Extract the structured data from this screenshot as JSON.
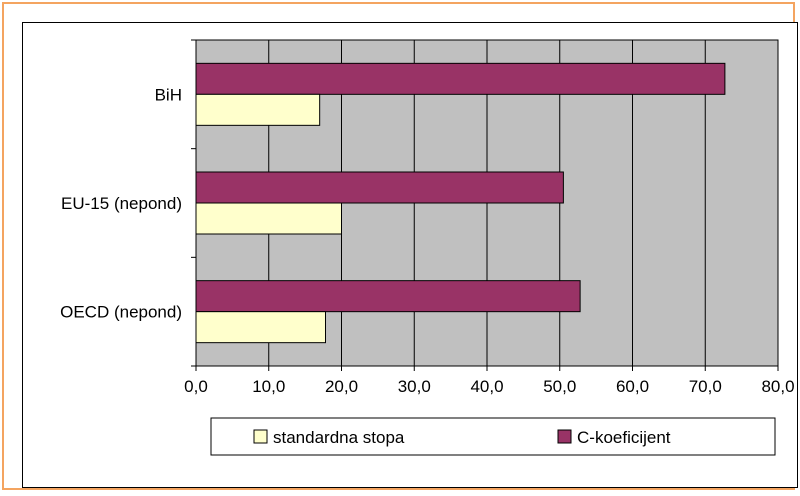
{
  "chart_data": {
    "type": "bar",
    "orientation": "horizontal",
    "categories": [
      "BiH",
      "EU-15 (nepond)",
      "OECD (nepond)"
    ],
    "series": [
      {
        "name": "standardna stopa",
        "values": [
          17.0,
          20.0,
          17.8
        ],
        "color": "#ffffcc"
      },
      {
        "name": "C-koeficijent",
        "values": [
          72.7,
          50.5,
          52.8
        ],
        "color": "#993366"
      }
    ],
    "xlim": [
      0,
      80
    ],
    "xticks": [
      "0,0",
      "10,0",
      "20,0",
      "30,0",
      "40,0",
      "50,0",
      "60,0",
      "70,0",
      "80,0"
    ],
    "grid": true,
    "plot_background": "#c0c0c0",
    "legend": "bottom",
    "title": "",
    "xlabel": "",
    "ylabel": ""
  }
}
